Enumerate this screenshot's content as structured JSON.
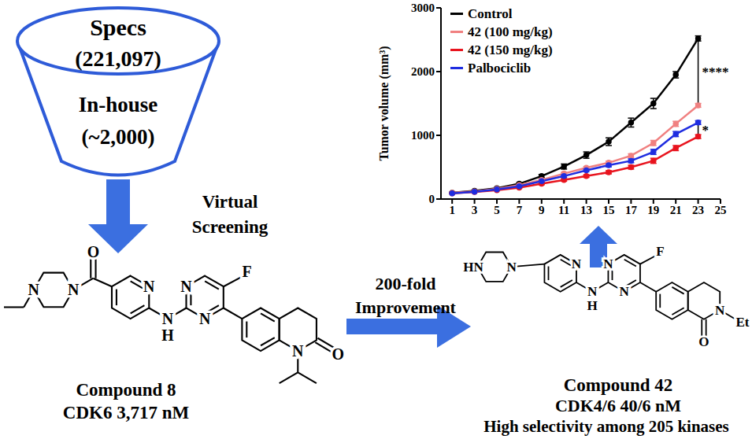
{
  "funnel": {
    "upper": [
      "Specs",
      "(221,097)"
    ],
    "lower": [
      "In-house",
      "(~2,000)"
    ]
  },
  "screening_label": [
    "Virtual",
    "Screening"
  ],
  "improvement_label": [
    "200-fold",
    "Improvement"
  ],
  "compound_8": {
    "name": "Compound 8",
    "activity": [
      "CDK6 3,717 nM"
    ],
    "atoms": [
      "O",
      "N",
      "N",
      "N",
      "N",
      "N",
      "N",
      "H",
      "F",
      "N",
      "O"
    ]
  },
  "compound_42": {
    "name": "Compound 42",
    "activity": [
      "CDK4/6 40/6 nM",
      "High selectivity among 205 kinases"
    ],
    "atoms": [
      "HN",
      "N",
      "N",
      "N",
      "N",
      "N",
      "H",
      "F",
      "O",
      "N",
      "Et"
    ]
  },
  "chart_data": {
    "type": "line",
    "y_label": "Tumor volume (mm³)",
    "x": [
      1,
      3,
      5,
      7,
      9,
      11,
      13,
      15,
      17,
      19,
      21,
      23
    ],
    "xlim": [
      0,
      25
    ],
    "xticks": [
      1,
      3,
      5,
      7,
      9,
      11,
      13,
      15,
      17,
      19,
      21,
      23,
      25
    ],
    "ylim": [
      0,
      3000
    ],
    "yticks": [
      0,
      1000,
      2000,
      3000
    ],
    "legend": "upper left",
    "marker": "circle",
    "series": [
      {
        "name": "Control",
        "color": "#000000",
        "values": [
          100,
          130,
          170,
          240,
          360,
          510,
          690,
          900,
          1200,
          1500,
          1950,
          2520
        ],
        "errors": [
          5,
          8,
          10,
          15,
          25,
          40,
          50,
          60,
          70,
          80,
          50,
          40
        ]
      },
      {
        "name": "42 (100 mg/kg)",
        "color": "#f08080",
        "values": [
          100,
          120,
          160,
          220,
          300,
          400,
          490,
          570,
          680,
          880,
          1180,
          1470
        ],
        "errors": [
          5,
          5,
          8,
          10,
          15,
          20,
          20,
          25,
          30,
          40,
          40,
          30
        ]
      },
      {
        "name": "42 (150 mg/kg)",
        "color": "#e8141e",
        "values": [
          90,
          110,
          140,
          180,
          240,
          300,
          360,
          420,
          500,
          600,
          800,
          980
        ],
        "errors": [
          5,
          5,
          8,
          10,
          15,
          20,
          20,
          25,
          30,
          40,
          40,
          30
        ]
      },
      {
        "name": "Palbociclib",
        "color": "#1f2de0",
        "values": [
          90,
          115,
          150,
          200,
          280,
          360,
          450,
          530,
          600,
          740,
          1020,
          1200
        ],
        "errors": [
          5,
          5,
          8,
          10,
          15,
          20,
          20,
          25,
          30,
          40,
          40,
          30
        ]
      }
    ],
    "annotations": [
      {
        "text": "****",
        "x": 23,
        "y": [
          1470,
          2520
        ]
      },
      {
        "text": "*",
        "x": 23,
        "y": [
          980,
          1200
        ]
      }
    ]
  }
}
